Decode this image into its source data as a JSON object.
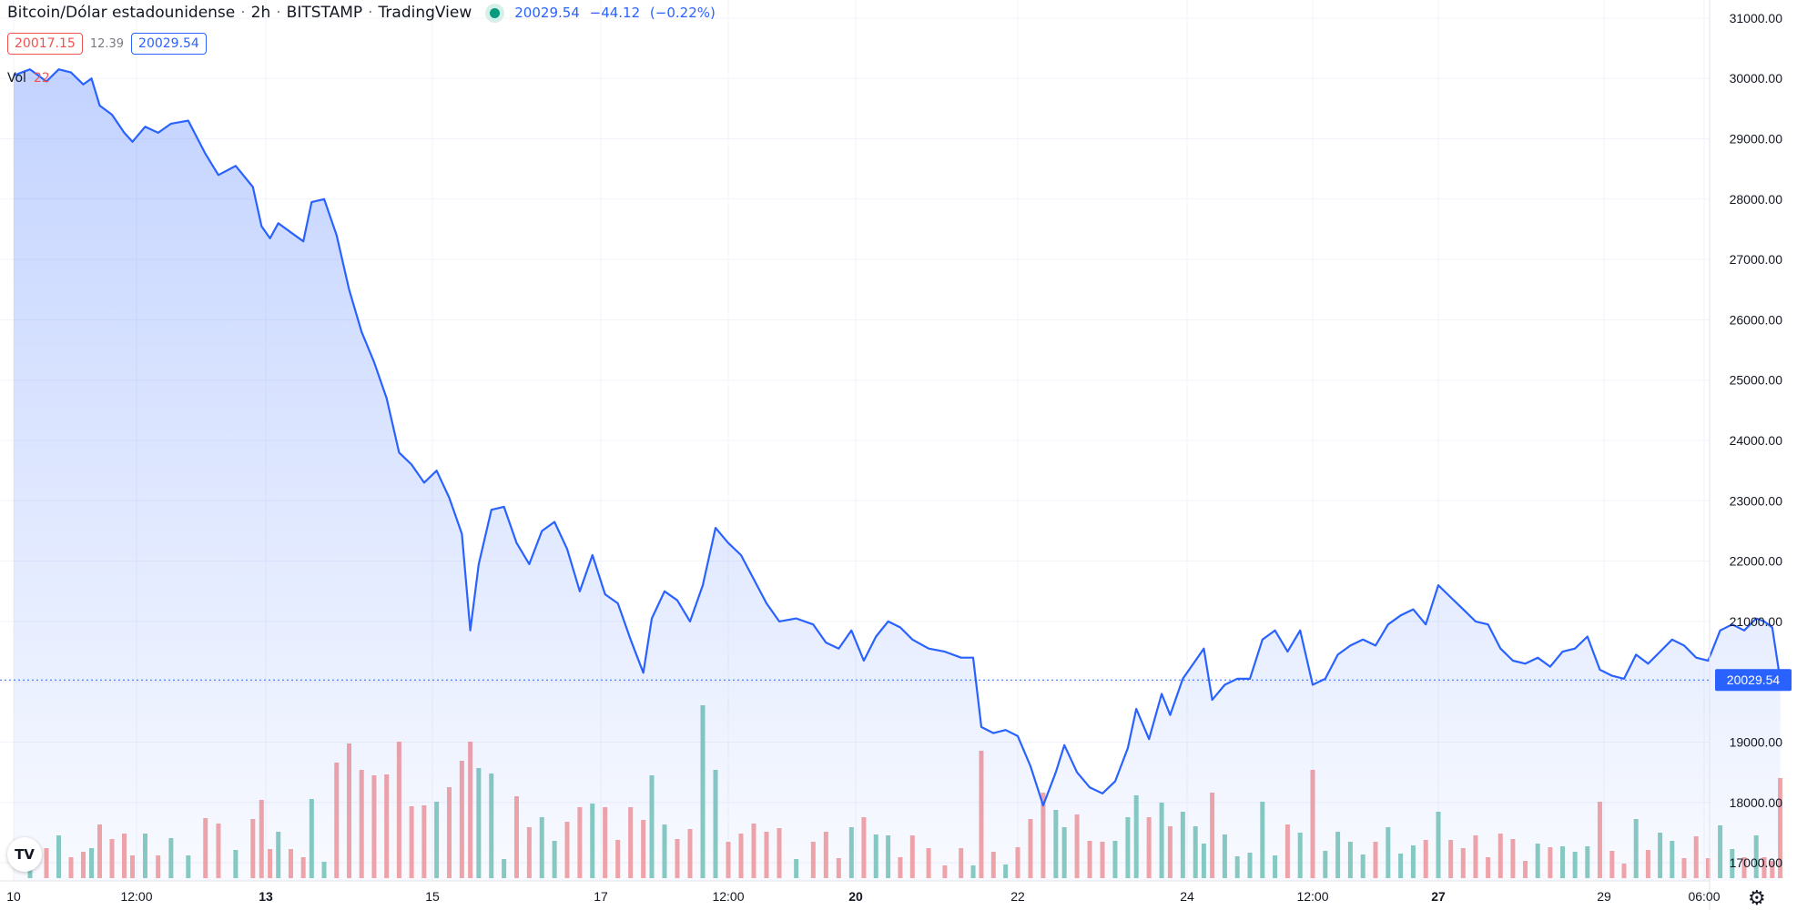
{
  "header": {
    "symbol": "Bitcoin/Dólar estadounidense",
    "interval": "2h",
    "exchange": "BITSTAMP",
    "source": "TradingView",
    "last_price": "20029.54",
    "change": "−44.12",
    "change_pct": "(−0.22%)"
  },
  "quotes": {
    "bid": "20017.15",
    "spread": "12.39",
    "ask": "20029.54"
  },
  "volume": {
    "label": "Vol",
    "value": "22"
  },
  "price_label": "20029.54",
  "colors": {
    "line": "#2962ff",
    "vol_up": "#89ccc0",
    "vol_down": "#f5a5a5",
    "badge": "#2962ff"
  },
  "chart_data": {
    "type": "area",
    "title": "Bitcoin/Dólar estadounidense · 2h · BITSTAMP",
    "ylim": [
      16700,
      31300
    ],
    "y_ticks": [
      "31000.00",
      "30000.00",
      "29000.00",
      "28000.00",
      "27000.00",
      "26000.00",
      "25000.00",
      "24000.00",
      "23000.00",
      "22000.00",
      "21000.00",
      "20000.00",
      "19000.00",
      "18000.00",
      "17000.00"
    ],
    "y_tick_values": [
      31000,
      30000,
      29000,
      28000,
      27000,
      26000,
      25000,
      24000,
      23000,
      22000,
      21000,
      20000,
      19000,
      18000,
      17000
    ],
    "x_range": [
      0,
      21.2
    ],
    "x_ticks": [
      {
        "label": "10",
        "t": 0
      },
      {
        "label": "12:00",
        "t": 1.5
      },
      {
        "label": "13",
        "t": 3
      },
      {
        "label": "15",
        "t": 5
      },
      {
        "label": "17",
        "t": 7
      },
      {
        "label": "12:00",
        "t": 8.5
      },
      {
        "label": "20",
        "t": 10
      },
      {
        "label": "22",
        "t": 12
      },
      {
        "label": "24",
        "t": 14
      },
      {
        "label": "12:00",
        "t": 15.5
      },
      {
        "label": "27",
        "t": 17
      },
      {
        "label": "29",
        "t": 19
      },
      {
        "label": "06:00",
        "t": 20.25
      }
    ],
    "price_points": [
      [
        0,
        30050
      ],
      [
        0.2,
        30150
      ],
      [
        0.4,
        29950
      ],
      [
        0.55,
        30150
      ],
      [
        0.7,
        30100
      ],
      [
        0.85,
        29900
      ],
      [
        0.95,
        30000
      ],
      [
        1.05,
        29550
      ],
      [
        1.2,
        29400
      ],
      [
        1.35,
        29100
      ],
      [
        1.45,
        28950
      ],
      [
        1.6,
        29200
      ],
      [
        1.75,
        29100
      ],
      [
        1.9,
        29250
      ],
      [
        2.1,
        29300
      ],
      [
        2.3,
        28750
      ],
      [
        2.45,
        28400
      ],
      [
        2.65,
        28550
      ],
      [
        2.85,
        28200
      ],
      [
        2.95,
        27550
      ],
      [
        3.05,
        27350
      ],
      [
        3.15,
        27600
      ],
      [
        3.3,
        27450
      ],
      [
        3.45,
        27300
      ],
      [
        3.55,
        27950
      ],
      [
        3.7,
        28000
      ],
      [
        3.85,
        27400
      ],
      [
        4.0,
        26500
      ],
      [
        4.15,
        25800
      ],
      [
        4.3,
        25300
      ],
      [
        4.45,
        24700
      ],
      [
        4.6,
        23800
      ],
      [
        4.75,
        23600
      ],
      [
        4.9,
        23300
      ],
      [
        5.05,
        23500
      ],
      [
        5.2,
        23050
      ],
      [
        5.35,
        22450
      ],
      [
        5.45,
        20850
      ],
      [
        5.55,
        21950
      ],
      [
        5.7,
        22850
      ],
      [
        5.85,
        22900
      ],
      [
        6.0,
        22300
      ],
      [
        6.15,
        21950
      ],
      [
        6.3,
        22500
      ],
      [
        6.45,
        22650
      ],
      [
        6.6,
        22200
      ],
      [
        6.75,
        21500
      ],
      [
        6.9,
        22100
      ],
      [
        7.05,
        21450
      ],
      [
        7.2,
        21300
      ],
      [
        7.35,
        20700
      ],
      [
        7.5,
        20150
      ],
      [
        7.6,
        21050
      ],
      [
        7.75,
        21500
      ],
      [
        7.9,
        21350
      ],
      [
        8.05,
        21000
      ],
      [
        8.2,
        21600
      ],
      [
        8.35,
        22550
      ],
      [
        8.5,
        22300
      ],
      [
        8.65,
        22100
      ],
      [
        8.8,
        21700
      ],
      [
        8.95,
        21300
      ],
      [
        9.1,
        21000
      ],
      [
        9.3,
        21050
      ],
      [
        9.5,
        20950
      ],
      [
        9.65,
        20650
      ],
      [
        9.8,
        20550
      ],
      [
        9.95,
        20850
      ],
      [
        10.1,
        20350
      ],
      [
        10.25,
        20750
      ],
      [
        10.4,
        21000
      ],
      [
        10.55,
        20900
      ],
      [
        10.7,
        20700
      ],
      [
        10.9,
        20550
      ],
      [
        11.1,
        20500
      ],
      [
        11.3,
        20400
      ],
      [
        11.45,
        20400
      ],
      [
        11.55,
        19250
      ],
      [
        11.7,
        19150
      ],
      [
        11.85,
        19200
      ],
      [
        12.0,
        19100
      ],
      [
        12.15,
        18600
      ],
      [
        12.3,
        17950
      ],
      [
        12.45,
        18500
      ],
      [
        12.55,
        18950
      ],
      [
        12.7,
        18500
      ],
      [
        12.85,
        18250
      ],
      [
        13.0,
        18150
      ],
      [
        13.15,
        18350
      ],
      [
        13.3,
        18900
      ],
      [
        13.4,
        19550
      ],
      [
        13.55,
        19050
      ],
      [
        13.7,
        19800
      ],
      [
        13.8,
        19450
      ],
      [
        13.95,
        20050
      ],
      [
        14.1,
        20350
      ],
      [
        14.2,
        20550
      ],
      [
        14.3,
        19700
      ],
      [
        14.45,
        19950
      ],
      [
        14.6,
        20050
      ],
      [
        14.75,
        20050
      ],
      [
        14.9,
        20700
      ],
      [
        15.05,
        20850
      ],
      [
        15.2,
        20500
      ],
      [
        15.35,
        20850
      ],
      [
        15.5,
        19950
      ],
      [
        15.65,
        20050
      ],
      [
        15.8,
        20450
      ],
      [
        15.95,
        20600
      ],
      [
        16.1,
        20700
      ],
      [
        16.25,
        20600
      ],
      [
        16.4,
        20950
      ],
      [
        16.55,
        21100
      ],
      [
        16.7,
        21200
      ],
      [
        16.85,
        20950
      ],
      [
        17.0,
        21600
      ],
      [
        17.15,
        21400
      ],
      [
        17.3,
        21200
      ],
      [
        17.45,
        21000
      ],
      [
        17.6,
        20950
      ],
      [
        17.75,
        20550
      ],
      [
        17.9,
        20350
      ],
      [
        18.05,
        20300
      ],
      [
        18.2,
        20400
      ],
      [
        18.35,
        20250
      ],
      [
        18.5,
        20500
      ],
      [
        18.65,
        20550
      ],
      [
        18.8,
        20750
      ],
      [
        18.95,
        20200
      ],
      [
        19.1,
        20100
      ],
      [
        19.25,
        20050
      ],
      [
        19.4,
        20450
      ],
      [
        19.55,
        20300
      ],
      [
        19.7,
        20500
      ],
      [
        19.85,
        20700
      ],
      [
        20.0,
        20600
      ],
      [
        20.15,
        20400
      ],
      [
        20.3,
        20350
      ],
      [
        20.45,
        20850
      ],
      [
        20.6,
        20950
      ],
      [
        20.75,
        20850
      ],
      [
        20.9,
        21050
      ],
      [
        21.0,
        21000
      ],
      [
        21.1,
        20900
      ],
      [
        21.2,
        20029.54
      ]
    ],
    "x_scale_breaks": "ticks map non-linearly to screen; t values follow tick spacing"
  }
}
